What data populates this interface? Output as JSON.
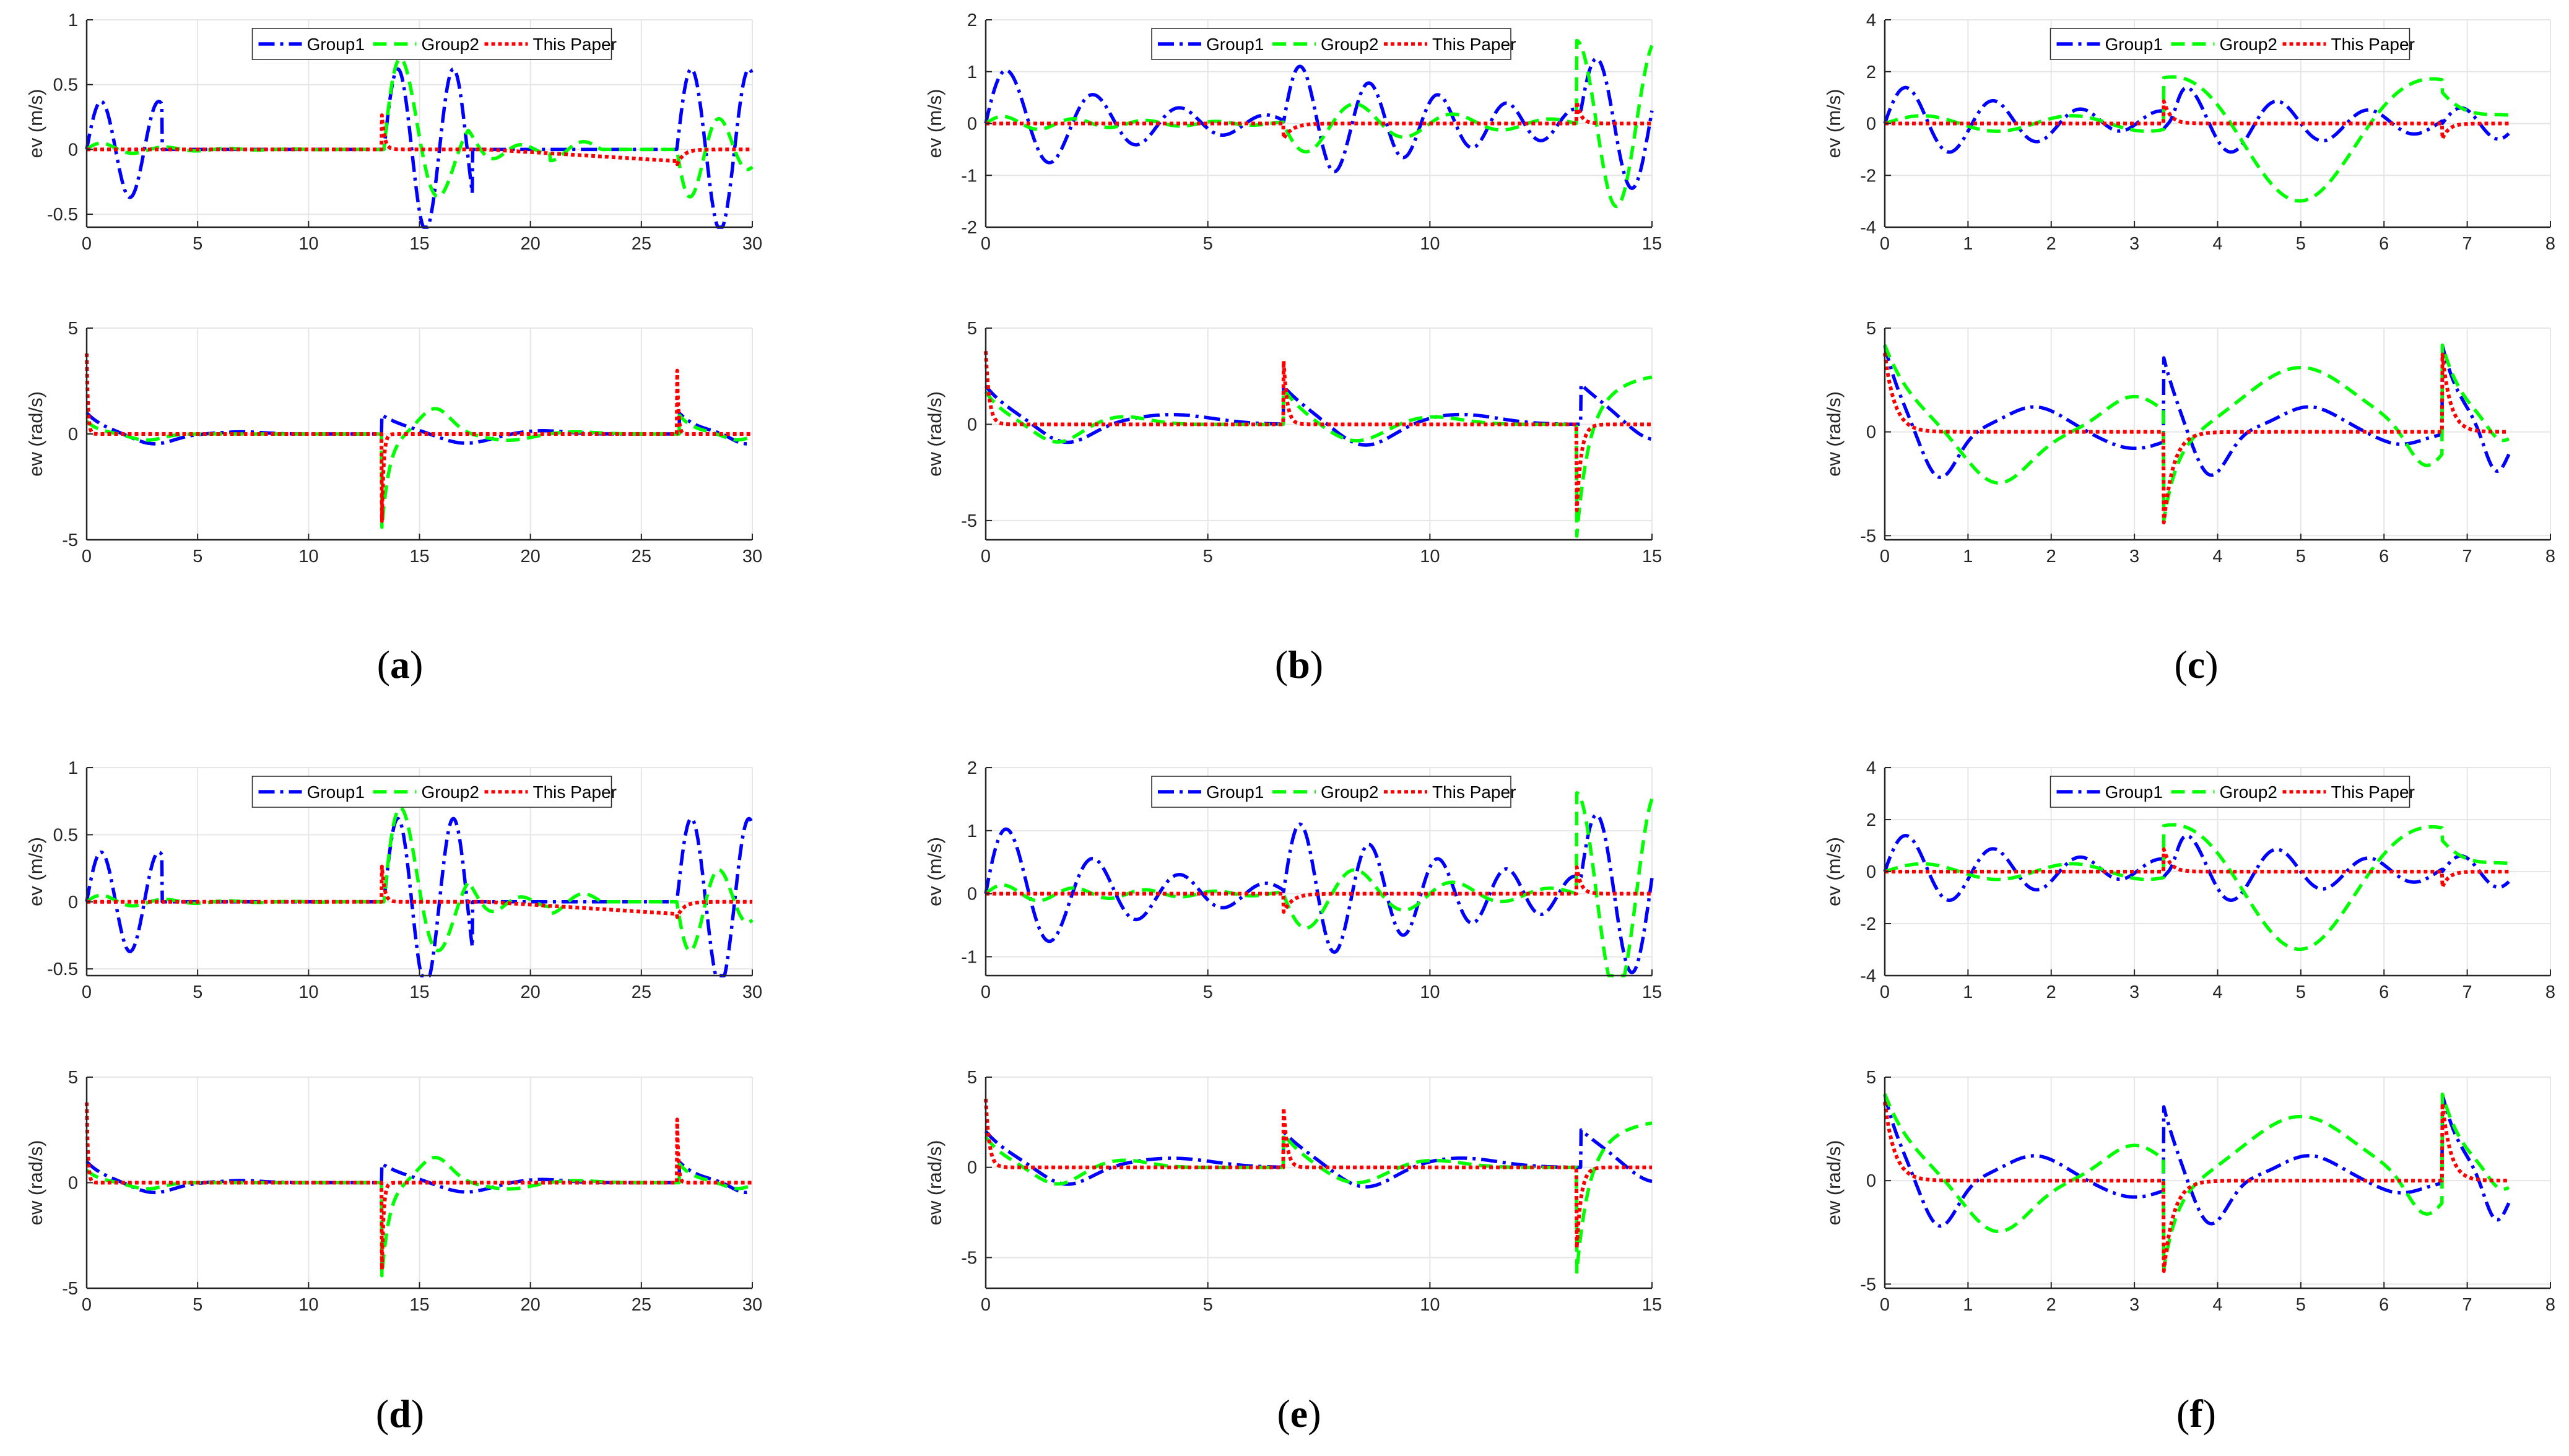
{
  "figure": {
    "legend": [
      "Group1",
      "Group2",
      "This Paper"
    ],
    "colors": {
      "group1": "#0000ff",
      "group2": "#00ff00",
      "paper": "#ff0000",
      "axis": "#262626",
      "grid": "#e6e6e6"
    },
    "captions": [
      "(a)",
      "(b)",
      "(c)",
      "(d)",
      "(e)",
      "(f)"
    ]
  },
  "chart_data": [
    {
      "panel": "a",
      "type": "line",
      "top": {
        "ylabel": "ev (m/s)",
        "xlim": [
          0,
          30
        ],
        "ylim": [
          -0.6,
          1
        ],
        "xticks": [
          0,
          5,
          10,
          15,
          20,
          25,
          30
        ],
        "yticks": [
          -0.5,
          0,
          0.5,
          1
        ],
        "legend": true
      },
      "bottom": {
        "ylabel": "ew (rad/s)",
        "xlim": [
          0,
          30
        ],
        "ylim": [
          -5,
          5
        ],
        "xticks": [
          0,
          5,
          10,
          15,
          20,
          25,
          30
        ],
        "yticks": [
          -5,
          0,
          5
        ]
      }
    },
    {
      "panel": "b",
      "type": "line",
      "top": {
        "ylabel": "ev (m/s)",
        "xlim": [
          0,
          15
        ],
        "ylim": [
          -2,
          2
        ],
        "xticks": [
          0,
          5,
          10,
          15
        ],
        "yticks": [
          -2,
          -1,
          0,
          1,
          2
        ],
        "legend": true
      },
      "bottom": {
        "ylabel": "ew (rad/s)",
        "xlim": [
          0,
          15
        ],
        "ylim": [
          -6,
          5
        ],
        "xticks": [
          0,
          5,
          10,
          15
        ],
        "yticks": [
          -5,
          0,
          5
        ]
      }
    },
    {
      "panel": "c",
      "type": "line",
      "top": {
        "ylabel": "ev (m/s)",
        "xlim": [
          0,
          8
        ],
        "ylim": [
          -4,
          4
        ],
        "xticks": [
          0,
          1,
          2,
          3,
          4,
          5,
          6,
          7,
          8
        ],
        "yticks": [
          -4,
          -2,
          0,
          2,
          4
        ],
        "legend": true
      },
      "bottom": {
        "ylabel": "ew (rad/s)",
        "xlim": [
          0,
          8
        ],
        "ylim": [
          -5.2,
          5
        ],
        "xticks": [
          0,
          1,
          2,
          3,
          4,
          5,
          6,
          7,
          8
        ],
        "yticks": [
          -5,
          0,
          5
        ]
      }
    },
    {
      "panel": "d",
      "type": "line",
      "top": {
        "ylabel": "ev (m/s)",
        "xlim": [
          0,
          30
        ],
        "ylim": [
          -0.55,
          1
        ],
        "xticks": [
          0,
          5,
          10,
          15,
          20,
          25,
          30
        ],
        "yticks": [
          -0.5,
          0,
          0.5,
          1
        ],
        "legend": true
      },
      "bottom": {
        "ylabel": "ew (rad/s)",
        "xlim": [
          0,
          30
        ],
        "ylim": [
          -5,
          5
        ],
        "xticks": [
          0,
          5,
          10,
          15,
          20,
          25,
          30
        ],
        "yticks": [
          -5,
          0,
          5
        ]
      }
    },
    {
      "panel": "e",
      "type": "line",
      "top": {
        "ylabel": "ev (m/s)",
        "xlim": [
          0,
          15
        ],
        "ylim": [
          -1.3,
          2
        ],
        "xticks": [
          0,
          5,
          10,
          15
        ],
        "yticks": [
          -1,
          0,
          1,
          2
        ],
        "legend": true
      },
      "bottom": {
        "ylabel": "ew (rad/s)",
        "xlim": [
          0,
          15
        ],
        "ylim": [
          -6.7,
          5
        ],
        "xticks": [
          0,
          5,
          10,
          15
        ],
        "yticks": [
          -5,
          0,
          5
        ]
      }
    },
    {
      "panel": "f",
      "type": "line",
      "top": {
        "ylabel": "ev (m/s)",
        "xlim": [
          0,
          8
        ],
        "ylim": [
          -4,
          4
        ],
        "xticks": [
          0,
          1,
          2,
          3,
          4,
          5,
          6,
          7,
          8
        ],
        "yticks": [
          -4,
          -2,
          0,
          2,
          4
        ],
        "legend": true
      },
      "bottom": {
        "ylabel": "ew (rad/s)",
        "xlim": [
          0,
          8
        ],
        "ylim": [
          -5.2,
          5
        ],
        "xticks": [
          0,
          1,
          2,
          3,
          4,
          5,
          6,
          7,
          8
        ],
        "yticks": [
          -5,
          0,
          5
        ]
      }
    }
  ]
}
